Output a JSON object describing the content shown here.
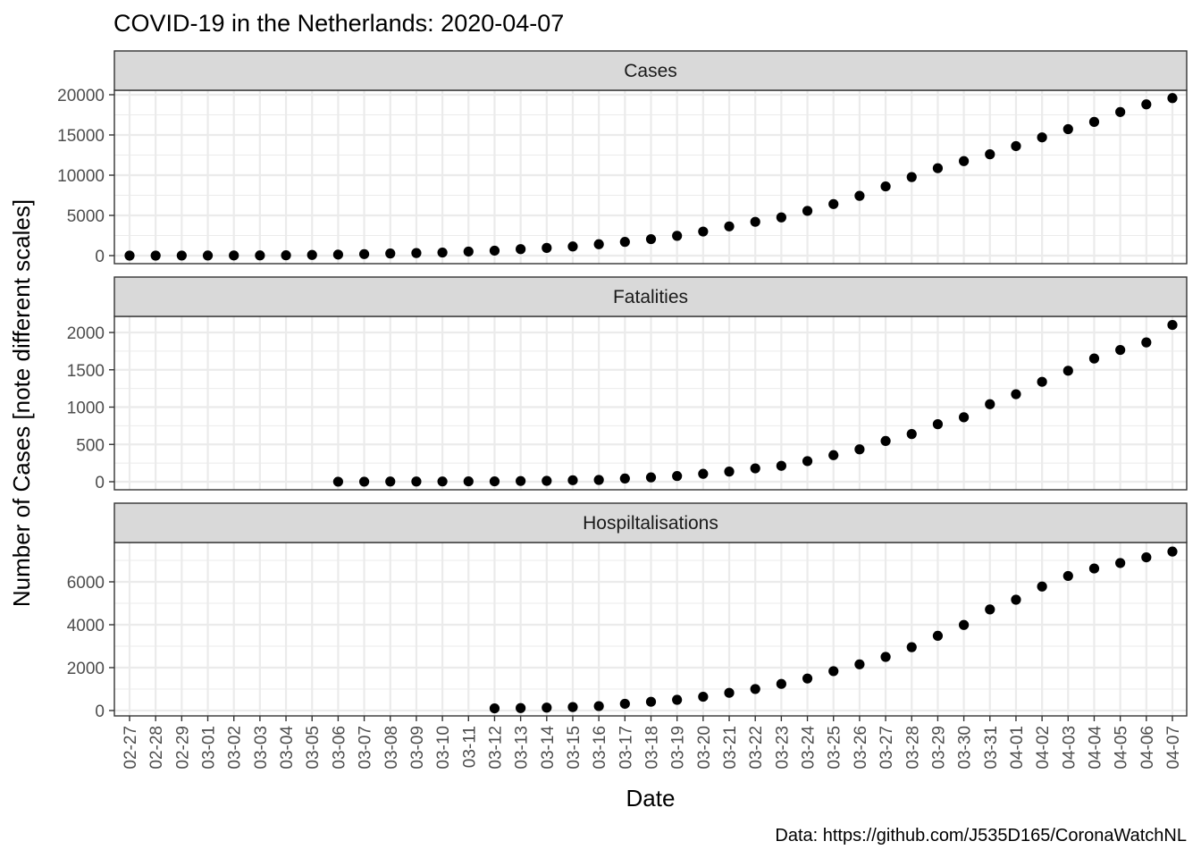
{
  "title": "COVID-19 in the Netherlands: 2020-04-07",
  "caption": "Data: https://github.com/J535D165/CoronaWatchNL",
  "chart_data": {
    "type": "scatter",
    "title": "COVID-19 in the Netherlands: 2020-04-07",
    "xlabel": "Date",
    "ylabel": "Number of Cases [note different scales]",
    "caption": "Data: https://github.com/J535D165/CoronaWatchNL",
    "grid": true,
    "x": [
      "02-27",
      "02-28",
      "02-29",
      "03-01",
      "03-02",
      "03-03",
      "03-04",
      "03-05",
      "03-06",
      "03-07",
      "03-08",
      "03-09",
      "03-10",
      "03-11",
      "03-12",
      "03-13",
      "03-14",
      "03-15",
      "03-16",
      "03-17",
      "03-18",
      "03-19",
      "03-20",
      "03-21",
      "03-22",
      "03-23",
      "03-24",
      "03-25",
      "03-26",
      "03-27",
      "03-28",
      "03-29",
      "03-30",
      "03-31",
      "04-01",
      "04-02",
      "04-03",
      "04-04",
      "04-05",
      "04-06",
      "04-07"
    ],
    "panels": [
      {
        "name": "Cases",
        "ylim": [
          0,
          20500
        ],
        "yticks": [
          0,
          5000,
          10000,
          15000,
          20000
        ],
        "yticklabels": [
          "0",
          "5000",
          "10000",
          "15000",
          "20000"
        ],
        "values": [
          1,
          2,
          7,
          10,
          18,
          24,
          38,
          82,
          128,
          188,
          265,
          321,
          382,
          503,
          614,
          804,
          959,
          1135,
          1413,
          1705,
          2051,
          2460,
          2994,
          3631,
          4204,
          4749,
          5560,
          6412,
          7431,
          8603,
          9762,
          10866,
          11750,
          12595,
          13614,
          14697,
          15723,
          16627,
          17851,
          18803,
          19580
        ]
      },
      {
        "name": "Fatalities",
        "ylim": [
          0,
          2200
        ],
        "yticks": [
          0,
          500,
          1000,
          1500,
          2000
        ],
        "yticklabels": [
          "0",
          "500",
          "1000",
          "1500",
          "2000"
        ],
        "values": [
          null,
          null,
          null,
          null,
          null,
          null,
          null,
          null,
          1,
          1,
          3,
          3,
          4,
          5,
          5,
          10,
          12,
          20,
          24,
          43,
          58,
          76,
          106,
          136,
          179,
          213,
          276,
          356,
          434,
          546,
          639,
          771,
          864,
          1039,
          1173,
          1339,
          1487,
          1651,
          1766,
          1867,
          2101
        ]
      },
      {
        "name": "Hospiltalisations",
        "ylim": [
          0,
          7600
        ],
        "yticks": [
          0,
          2000,
          4000,
          6000
        ],
        "yticklabels": [
          "0",
          "2000",
          "4000",
          "6000"
        ],
        "values": [
          null,
          null,
          null,
          null,
          null,
          null,
          null,
          null,
          null,
          null,
          null,
          null,
          null,
          null,
          100,
          115,
          136,
          162,
          205,
          314,
          408,
          500,
          643,
          825,
          1003,
          1242,
          1493,
          1836,
          2154,
          2500,
          2954,
          3483,
          3990,
          4712,
          5167,
          5781,
          6274,
          6622,
          6876,
          7142,
          7410
        ]
      }
    ]
  }
}
